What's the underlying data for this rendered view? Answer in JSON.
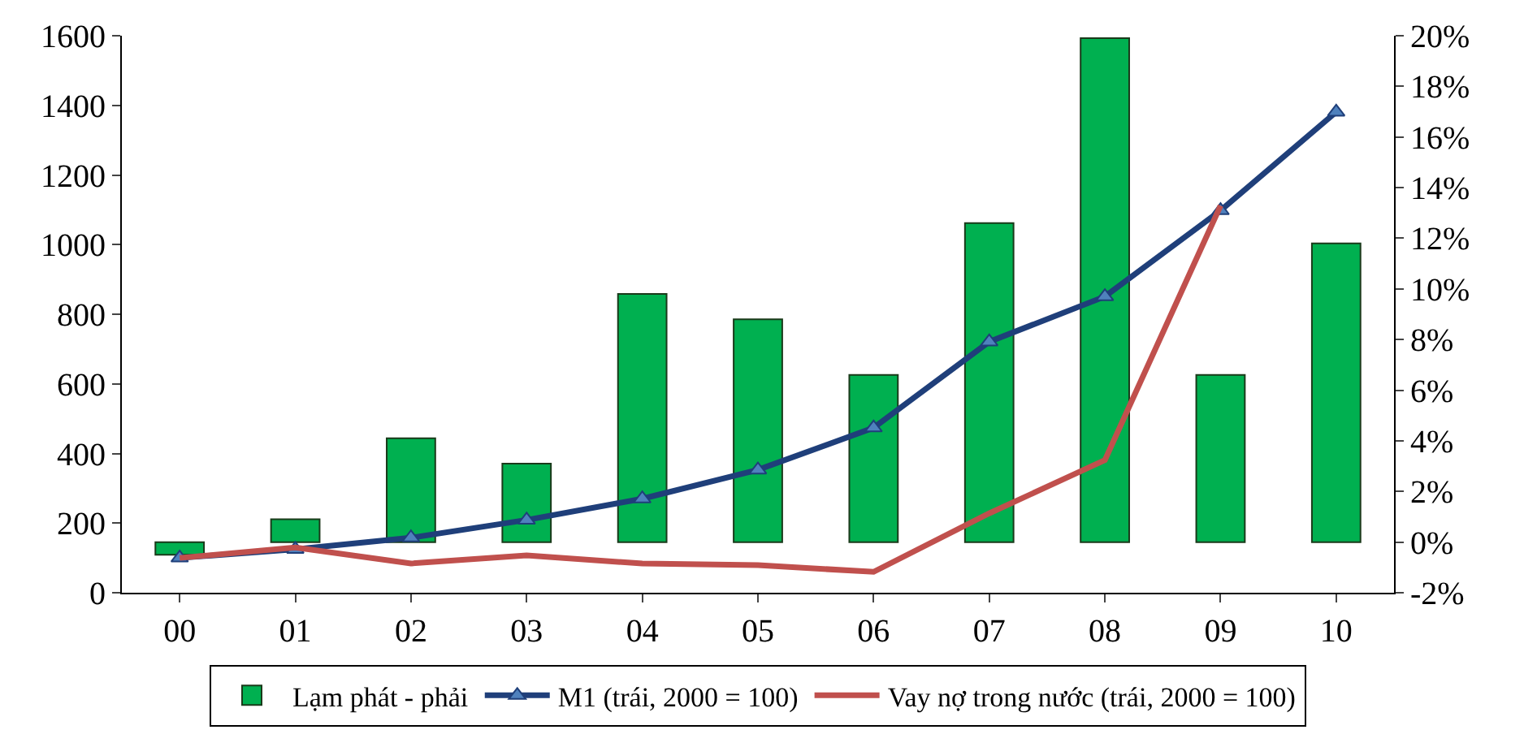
{
  "chart_data": {
    "type": "bar",
    "categories": [
      "00",
      "01",
      "02",
      "03",
      "04",
      "05",
      "06",
      "07",
      "08",
      "09",
      "10"
    ],
    "series": [
      {
        "name": "Lạm phát - phải",
        "axis": "y2",
        "color": "#00b050",
        "values": [
          -0.5,
          0.9,
          4.1,
          3.1,
          9.8,
          8.8,
          6.6,
          12.6,
          19.9,
          6.6,
          11.8
        ]
      },
      {
        "name": "M1 (trái, 2000 = 100)",
        "type": "line",
        "axis": "y",
        "color": "#1f3f7a",
        "marker": "triangle",
        "values": [
          100,
          125,
          158,
          209,
          270,
          353,
          474,
          721,
          851,
          1098,
          1381
        ]
      },
      {
        "name": "Vay nợ trong nước (trái, 2000 = 100)",
        "type": "line",
        "axis": "y",
        "color": "#c0504d",
        "marker": "none",
        "values": [
          100,
          130,
          84,
          107,
          84,
          79,
          60,
          228,
          381,
          1112,
          null
        ]
      }
    ],
    "ylim": [
      0,
      1600
    ],
    "yticks": [
      0,
      200,
      400,
      600,
      800,
      1000,
      1200,
      1400,
      1600
    ],
    "y2lim": [
      -2,
      20
    ],
    "y2ticks": [
      {
        "value": -2,
        "label": "-2%"
      },
      {
        "value": 0,
        "label": "0%"
      },
      {
        "value": 2,
        "label": "2%"
      },
      {
        "value": 4,
        "label": "4%"
      },
      {
        "value": 6,
        "label": "6%"
      },
      {
        "value": 8,
        "label": "8%"
      },
      {
        "value": 10,
        "label": "10%"
      },
      {
        "value": 12,
        "label": "12%"
      },
      {
        "value": 14,
        "label": "14%"
      },
      {
        "value": 16,
        "label": "16%"
      },
      {
        "value": 18,
        "label": "18%"
      },
      {
        "value": 20,
        "label": "20%"
      }
    ],
    "legend": "bottom"
  }
}
